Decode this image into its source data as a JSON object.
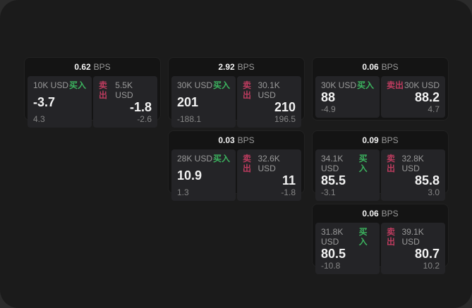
{
  "labels": {
    "bps_unit": "BPS",
    "buy": "买入",
    "sell": "卖出"
  },
  "colors": {
    "buy_green": "#3cb45f",
    "sell_rose": "#be3c5f",
    "page_background": "#1b1b1b",
    "card_background": "#141414",
    "panel_background": "#242427"
  },
  "cards": [
    {
      "bps": "0.62",
      "buy": {
        "amount": "10K USD",
        "price": "-3.7",
        "change": "4.3"
      },
      "sell": {
        "amount": "5.5K USD",
        "price": "-1.8",
        "change": "-2.6"
      }
    },
    {
      "bps": "2.92",
      "buy": {
        "amount": "30K USD",
        "price": "201",
        "change": "-188.1"
      },
      "sell": {
        "amount": "30.1K USD",
        "price": "210",
        "change": "196.5"
      }
    },
    {
      "bps": "0.06",
      "buy": {
        "amount": "30K USD",
        "price": "88",
        "change": "-4.9"
      },
      "sell": {
        "amount": "30K USD",
        "price": "88.2",
        "change": "4.7"
      }
    },
    {
      "bps": "0.03",
      "buy": {
        "amount": "28K USD",
        "price": "10.9",
        "change": "1.3"
      },
      "sell": {
        "amount": "32.6K USD",
        "price": "11",
        "change": "-1.8"
      }
    },
    {
      "bps": "0.09",
      "buy": {
        "amount": "34.1K USD",
        "price": "85.5",
        "change": "-3.1"
      },
      "sell": {
        "amount": "32.8K USD",
        "price": "85.8",
        "change": "3.0"
      }
    },
    {
      "bps": "0.06",
      "buy": {
        "amount": "31.8K USD",
        "price": "80.5",
        "change": "-10.8"
      },
      "sell": {
        "amount": "39.1K USD",
        "price": "80.7",
        "change": "10.2"
      }
    }
  ]
}
